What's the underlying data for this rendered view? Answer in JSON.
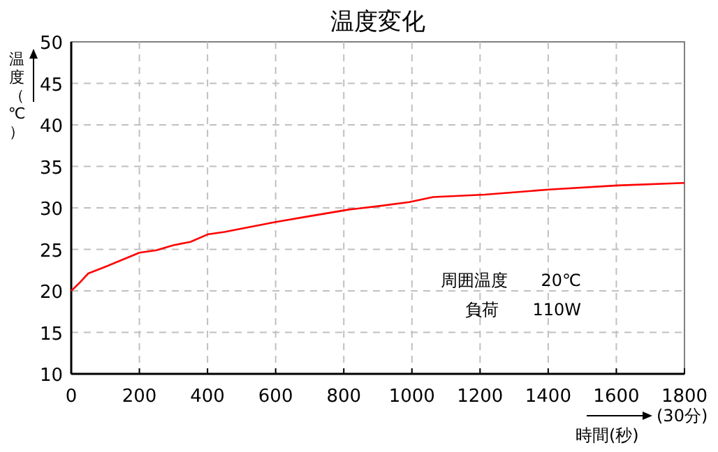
{
  "chart_data": {
    "type": "line",
    "title": "温度変化",
    "xlabel": "時間(秒)",
    "ylabel": "温度（℃）",
    "x": [
      0,
      25,
      50,
      100,
      147,
      200,
      250,
      300,
      350,
      400,
      450,
      500,
      600,
      700,
      816,
      900,
      992,
      1062,
      1214,
      1402,
      1603,
      1800
    ],
    "series": [
      {
        "color": "#ff0000",
        "values": [
          20,
          21,
          22.1,
          22.9,
          23.7,
          24.6,
          24.9,
          25.5,
          25.9,
          26.8,
          27.1,
          27.5,
          28.3,
          29.0,
          29.8,
          30.2,
          30.7,
          31.3,
          31.6,
          32.2,
          32.7,
          33.0
        ]
      }
    ],
    "xlim": [
      0,
      1800
    ],
    "ylim": [
      10,
      50
    ],
    "xticks": [
      0,
      200,
      400,
      600,
      800,
      1000,
      1200,
      1400,
      1600,
      1800
    ],
    "yticks": [
      10,
      15,
      20,
      25,
      30,
      35,
      40,
      45,
      50
    ],
    "grid": true,
    "annotations": [
      "周囲温度　　20℃",
      "負荷　　110W",
      "(30分)"
    ]
  }
}
